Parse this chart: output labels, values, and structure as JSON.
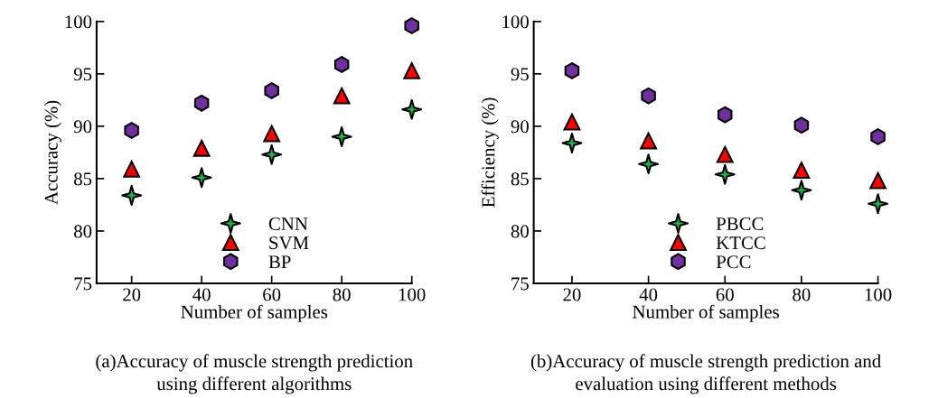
{
  "chart_data": [
    {
      "type": "scatter",
      "xlabel": "Number of samples",
      "ylabel": "Accuracy (%)",
      "x": [
        20,
        40,
        60,
        80,
        100
      ],
      "xlim": [
        10,
        100
      ],
      "xticks": [
        20,
        40,
        60,
        80,
        100
      ],
      "ylim": [
        75,
        100
      ],
      "yticks": [
        75,
        80,
        85,
        90,
        95,
        100
      ],
      "grid": false,
      "legend": "bottom",
      "annotations": [
        "(a)Accuracy of muscle strength prediction\nusing different algorithms"
      ],
      "series": [
        {
          "name": "CNN",
          "color": "#1db34a",
          "marker": "star",
          "values": [
            83.4,
            85.1,
            87.3,
            89.0,
            91.6
          ]
        },
        {
          "name": "SVM",
          "color": "#ff0000",
          "marker": "triangle",
          "values": [
            85.9,
            87.9,
            89.3,
            92.9,
            95.3
          ]
        },
        {
          "name": "BP",
          "color": "#7030a0",
          "marker": "circle",
          "values": [
            89.6,
            92.2,
            93.4,
            95.9,
            99.6
          ]
        }
      ]
    },
    {
      "type": "scatter",
      "xlabel": "Number of samples",
      "ylabel": "Efficiency (%)",
      "x": [
        20,
        40,
        60,
        80,
        100
      ],
      "xlim": [
        10,
        100
      ],
      "xticks": [
        20,
        40,
        60,
        80,
        100
      ],
      "ylim": [
        75,
        100
      ],
      "yticks": [
        75,
        80,
        85,
        90,
        95,
        100
      ],
      "grid": false,
      "legend": "bottom",
      "annotations": [
        "(b)Accuracy of muscle strength prediction and\nevaluation using different methods"
      ],
      "series": [
        {
          "name": "PBCC",
          "color": "#1db34a",
          "marker": "star",
          "values": [
            88.4,
            86.4,
            85.4,
            83.9,
            82.6
          ]
        },
        {
          "name": "KTCC",
          "color": "#ff0000",
          "marker": "triangle",
          "values": [
            90.4,
            88.6,
            87.3,
            85.8,
            84.8
          ]
        },
        {
          "name": "PCC",
          "color": "#7030a0",
          "marker": "circle",
          "values": [
            95.3,
            92.9,
            91.1,
            90.1,
            89.0
          ]
        }
      ]
    }
  ]
}
